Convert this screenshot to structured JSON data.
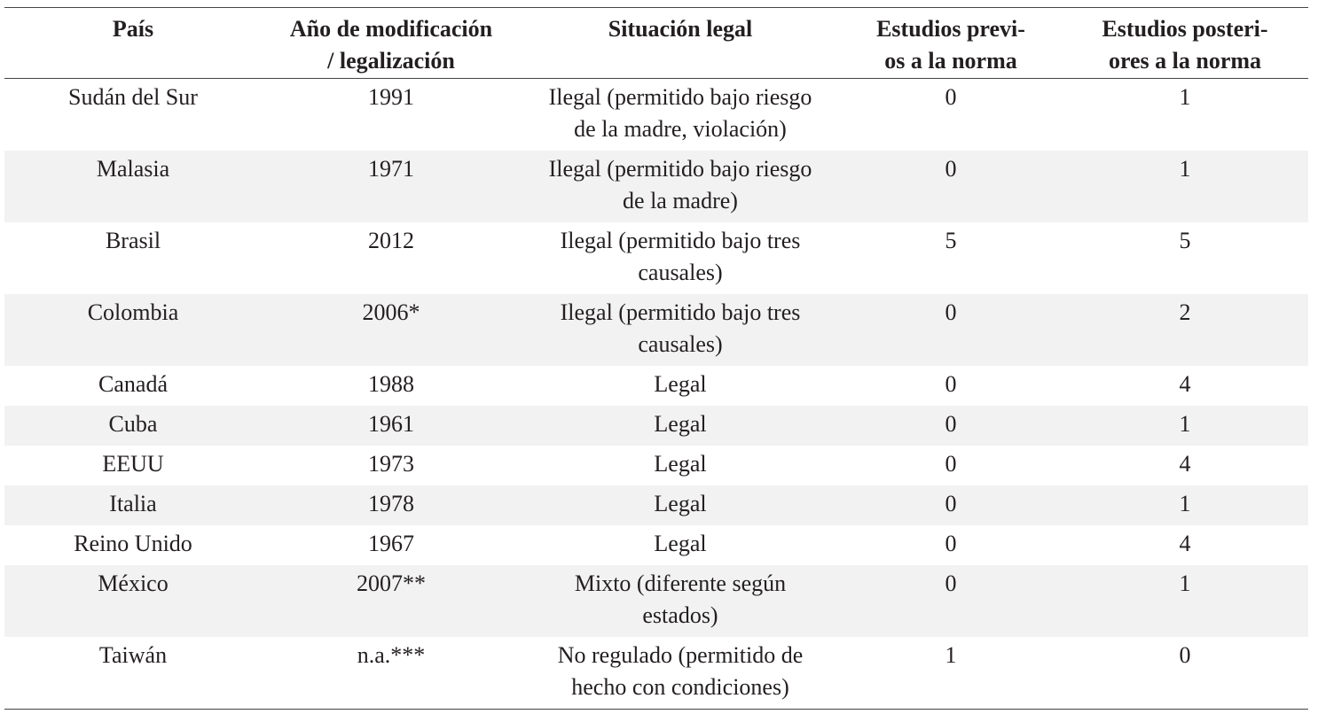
{
  "headers": [
    [
      "País",
      ""
    ],
    [
      "Año de modificación",
      "/ legalización"
    ],
    [
      "Situación legal",
      ""
    ],
    [
      "Estudios previ-",
      "os a la norma"
    ],
    [
      "Estudios posteri-",
      "ores a la norma"
    ]
  ],
  "rows": [
    {
      "pais": "Sudán del Sur",
      "anio": "1991",
      "situacion": [
        "Ilegal (permitido bajo riesgo",
        "de la madre, violación)"
      ],
      "previos": "0",
      "posteriores": "1"
    },
    {
      "pais": "Malasia",
      "anio": "1971",
      "situacion": [
        "Ilegal (permitido bajo riesgo",
        "de la madre)"
      ],
      "previos": "0",
      "posteriores": "1"
    },
    {
      "pais": "Brasil",
      "anio": "2012",
      "situacion": [
        "Ilegal (permitido bajo tres",
        "causales)"
      ],
      "previos": "5",
      "posteriores": "5"
    },
    {
      "pais": "Colombia",
      "anio": "2006*",
      "situacion": [
        "Ilegal (permitido bajo tres",
        "causales)"
      ],
      "previos": "0",
      "posteriores": "2"
    },
    {
      "pais": "Canadá",
      "anio": "1988",
      "situacion": [
        "Legal"
      ],
      "previos": "0",
      "posteriores": "4"
    },
    {
      "pais": "Cuba",
      "anio": "1961",
      "situacion": [
        "Legal"
      ],
      "previos": "0",
      "posteriores": "1"
    },
    {
      "pais": "EEUU",
      "anio": "1973",
      "situacion": [
        "Legal"
      ],
      "previos": "0",
      "posteriores": "4"
    },
    {
      "pais": "Italia",
      "anio": "1978",
      "situacion": [
        "Legal"
      ],
      "previos": "0",
      "posteriores": "1"
    },
    {
      "pais": "Reino Unido",
      "anio": "1967",
      "situacion": [
        "Legal"
      ],
      "previos": "0",
      "posteriores": "4"
    },
    {
      "pais": "México",
      "anio": "2007**",
      "situacion": [
        "Mixto (diferente según",
        "estados)"
      ],
      "previos": "0",
      "posteriores": "1"
    },
    {
      "pais": "Taiwán",
      "anio": "n.a.***",
      "situacion": [
        "No regulado (permitido de",
        "hecho con condiciones)"
      ],
      "previos": "1",
      "posteriores": "0"
    }
  ]
}
